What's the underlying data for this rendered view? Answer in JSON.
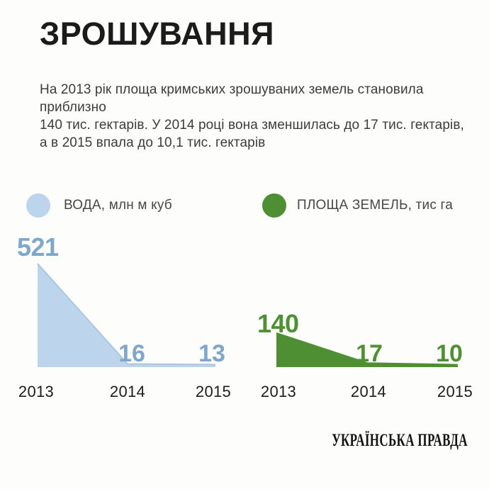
{
  "page": {
    "background": "#fdfdfc"
  },
  "header": {
    "title": "ЗРОШУВАННЯ"
  },
  "description": {
    "line1": "На 2013 рік площа кримських зрошуваних земель становила приблизно",
    "line2": "140 тис. гектарів. У 2014 році вона зменшилась до 17 тис. гектарів,",
    "line3": "а в 2015 впала до 10,1 тис. гектарів"
  },
  "legend": {
    "items": [
      {
        "label": "ВОДА, млн м куб",
        "color": "#bdd5ec"
      },
      {
        "label": "ПЛОЩА ЗЕМЕЛЬ, тис га",
        "color": "#4f8f33"
      }
    ]
  },
  "chart_data": [
    {
      "type": "area",
      "name": "ВОДА, млн м куб",
      "categories": [
        "2013",
        "2014",
        "2015"
      ],
      "values": [
        521,
        16,
        13
      ],
      "unit": "млн м куб",
      "color": "#bdd5ec",
      "edge_color": "#a9c7e2",
      "label_color": "#7ea7c9",
      "grid": "off",
      "legend_position": "top"
    },
    {
      "type": "area",
      "name": "ПЛОЩА ЗЕМЕЛЬ, тис га",
      "categories": [
        "2013",
        "2014",
        "2015"
      ],
      "values": [
        140,
        17,
        10
      ],
      "unit": "тис га",
      "color": "#4f8f33",
      "edge_color": "#4f8f33",
      "label_color": "#4f9034",
      "grid": "off",
      "legend_position": "top"
    }
  ],
  "footer": {
    "brand": "УКРАЇНСЬКА ПРАВДА"
  }
}
